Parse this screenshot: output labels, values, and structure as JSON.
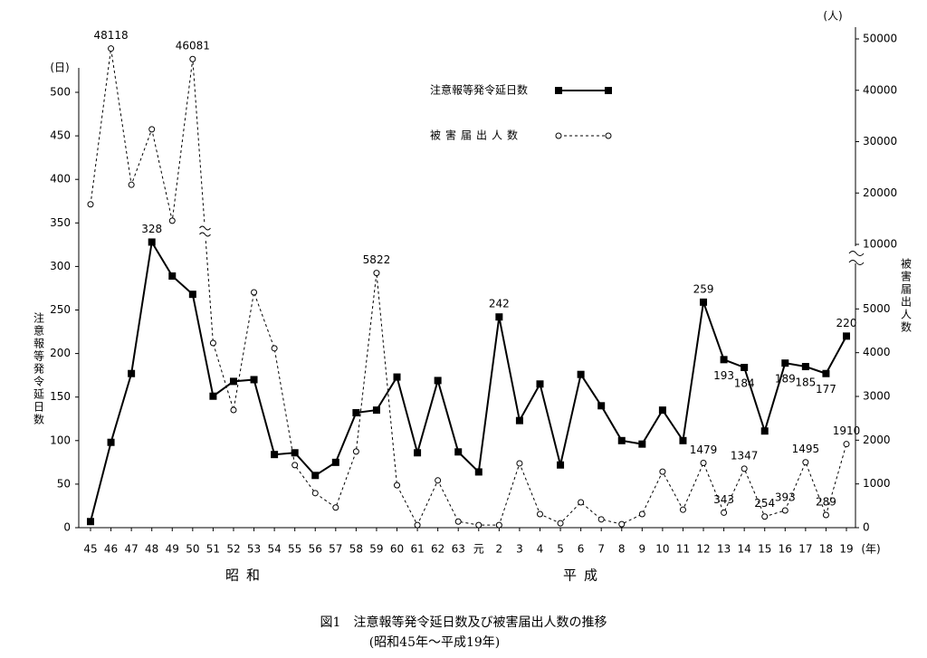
{
  "chart_data": {
    "type": "line",
    "title": "図1　注意報等発令延日数及び被害届出人数の推移",
    "subtitle": "(昭和45年～平成19年)",
    "y_label": "注意報等発令延日数",
    "y2_label": "被害届出人数",
    "y_unit": "(日)",
    "y2_unit": "(人)",
    "x_unit": "(年)",
    "eras": [
      "昭和",
      "平成"
    ],
    "categories": [
      "45",
      "46",
      "47",
      "48",
      "49",
      "50",
      "51",
      "52",
      "53",
      "54",
      "55",
      "56",
      "57",
      "58",
      "59",
      "60",
      "61",
      "62",
      "63",
      "元",
      "2",
      "3",
      "4",
      "5",
      "6",
      "7",
      "8",
      "9",
      "10",
      "11",
      "12",
      "13",
      "14",
      "15",
      "16",
      "17",
      "18",
      "19"
    ],
    "series": [
      {
        "name": "注意報等発令延日数",
        "color": "#000000",
        "dash": false,
        "marker": "square",
        "values": [
          7,
          98,
          177,
          328,
          289,
          268,
          151,
          168,
          170,
          84,
          86,
          60,
          75,
          132,
          135,
          173,
          86,
          169,
          87,
          64,
          242,
          123,
          165,
          72,
          176,
          140,
          100,
          96,
          135,
          100,
          259,
          193,
          184,
          111,
          189,
          185,
          177,
          220
        ],
        "value_labels": [
          null,
          null,
          null,
          "328",
          null,
          null,
          null,
          null,
          null,
          null,
          null,
          null,
          null,
          null,
          null,
          null,
          null,
          null,
          null,
          null,
          "242",
          null,
          null,
          null,
          null,
          null,
          null,
          null,
          null,
          null,
          "259",
          "193",
          "184",
          null,
          "189",
          "185",
          "177",
          "220"
        ]
      },
      {
        "name": "被害届出人数",
        "color": "#000000",
        "dash": true,
        "marker": "circle",
        "axis": "y2",
        "values": [
          17800,
          48118,
          21600,
          32400,
          14600,
          46081,
          4220,
          2690,
          5380,
          4100,
          1430,
          790,
          460,
          1740,
          5822,
          970,
          60,
          1080,
          140,
          60,
          60,
          1470,
          310,
          100,
          580,
          190,
          80,
          310,
          1280,
          410,
          1479,
          343,
          1347,
          254,
          393,
          1495,
          289,
          1910
        ],
        "value_labels": [
          null,
          "48118",
          null,
          null,
          null,
          "46081",
          null,
          null,
          null,
          null,
          null,
          null,
          null,
          null,
          "5822",
          null,
          null,
          null,
          null,
          null,
          null,
          null,
          null,
          null,
          null,
          null,
          null,
          null,
          null,
          null,
          "1479",
          "343",
          "1347",
          "254",
          "393",
          "1495",
          "289",
          "1910"
        ]
      }
    ],
    "ylim": [
      0,
      500
    ],
    "yticks": [
      0,
      50,
      100,
      150,
      200,
      250,
      300,
      350,
      400,
      450,
      500
    ],
    "y2lim": [
      0,
      50000
    ],
    "y2ticks": [
      0,
      1000,
      2000,
      3000,
      4000,
      5000,
      10000,
      20000,
      30000,
      40000,
      50000
    ],
    "y2_break": [
      6000,
      10000
    ],
    "grid": false
  }
}
